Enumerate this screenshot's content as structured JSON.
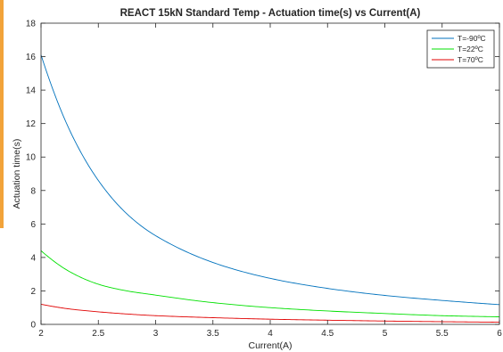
{
  "chart_data": {
    "type": "line",
    "title": "REACT 15kN Standard Temp - Actuation time(s) vs Current(A)",
    "xlabel": "Current(A)",
    "ylabel": "Actuation time(s)",
    "xlim": [
      2,
      6
    ],
    "ylim": [
      0,
      18
    ],
    "xticks": [
      "2",
      "2.5",
      "3",
      "3.5",
      "4",
      "4.5",
      "5",
      "5.5",
      "6"
    ],
    "yticks": [
      "0",
      "2",
      "4",
      "6",
      "8",
      "10",
      "12",
      "14",
      "16",
      "18"
    ],
    "grid": false,
    "legend_position": "top-right",
    "x": [
      2.0,
      2.25,
      2.5,
      2.75,
      3.0,
      3.5,
      4.0,
      4.5,
      5.0,
      5.5,
      6.0
    ],
    "series": [
      {
        "name": "T=-90ºC",
        "color": "#0072bd",
        "values": [
          16.1,
          11.6,
          8.6,
          6.6,
          5.3,
          3.7,
          2.75,
          2.15,
          1.73,
          1.43,
          1.18
        ]
      },
      {
        "name": "T=22ºC",
        "color": "#00e000",
        "values": [
          4.4,
          3.15,
          2.4,
          2.0,
          1.75,
          1.3,
          1.0,
          0.8,
          0.65,
          0.52,
          0.45
        ]
      },
      {
        "name": "T=70ºC",
        "color": "#e00000",
        "values": [
          1.2,
          0.92,
          0.75,
          0.62,
          0.52,
          0.4,
          0.31,
          0.25,
          0.2,
          0.16,
          0.13
        ]
      }
    ]
  }
}
